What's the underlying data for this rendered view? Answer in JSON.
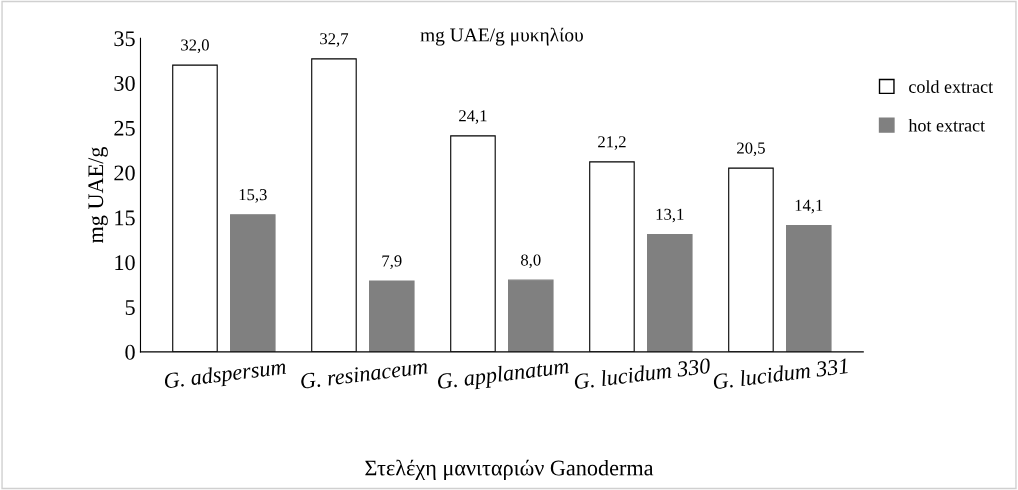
{
  "chart_data": {
    "type": "bar",
    "title": "mg UAE/g μυκηλίου",
    "xlabel": "Στελέχη μανιταριών Ganoderma",
    "ylabel": "mg UAE/g",
    "categories": [
      "G. adspersum",
      "G. resinaceum",
      "G. applanatum",
      "G. lucidum 330",
      "G. lucidum 331"
    ],
    "series": [
      {
        "name": "cold extract",
        "color": "#ffffff",
        "values": [
          32.0,
          32.7,
          24.1,
          21.2,
          20.5
        ],
        "value_labels": [
          "32,0",
          "32,7",
          "24,1",
          "21,2",
          "20,5"
        ]
      },
      {
        "name": "hot extract",
        "color": "#808080",
        "values": [
          15.3,
          7.9,
          8.0,
          13.1,
          14.1
        ],
        "value_labels": [
          "15,3",
          "7,9",
          "8,0",
          "13,1",
          "14,1"
        ]
      }
    ],
    "ylim": [
      0,
      35
    ],
    "yticks": [
      0,
      5,
      10,
      15,
      20,
      25,
      30,
      35
    ],
    "grid": false,
    "legend": "right"
  }
}
